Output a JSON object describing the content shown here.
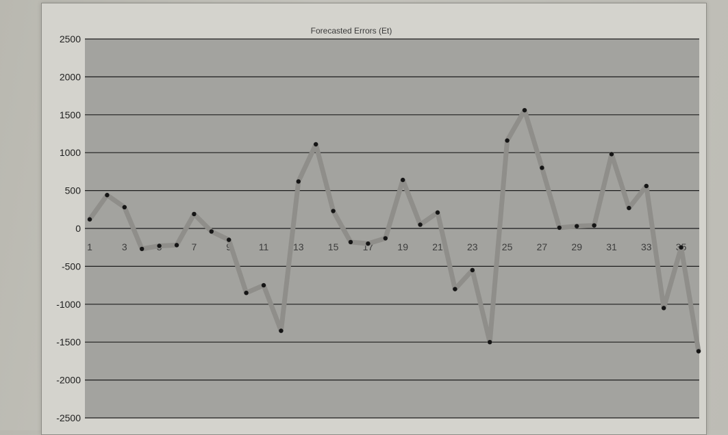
{
  "chart_data": {
    "type": "line",
    "title": "Forecasted Errors (Et)",
    "xlabel": "",
    "ylabel": "",
    "ylim": [
      -2500,
      2500
    ],
    "yticks": [
      2500,
      2000,
      1500,
      1000,
      500,
      0,
      -500,
      -1000,
      -1500,
      -2000,
      -2500
    ],
    "xticks": [
      1,
      3,
      5,
      7,
      9,
      11,
      13,
      15,
      17,
      19,
      21,
      23,
      25,
      27,
      29,
      31,
      33,
      35
    ],
    "grid": true,
    "legend": "none",
    "x": [
      1,
      2,
      3,
      4,
      5,
      6,
      7,
      8,
      9,
      10,
      11,
      12,
      13,
      14,
      15,
      16,
      17,
      18,
      19,
      20,
      21,
      22,
      23,
      24,
      25,
      26,
      27,
      28,
      29,
      30,
      31,
      32,
      33,
      34,
      35,
      36
    ],
    "series": [
      {
        "values": [
          120,
          440,
          280,
          -270,
          -230,
          -220,
          190,
          -40,
          -150,
          -850,
          -750,
          -1350,
          620,
          1110,
          230,
          -180,
          -200,
          -130,
          640,
          50,
          210,
          -800,
          -550,
          -1500,
          1160,
          1560,
          800,
          10,
          30,
          40,
          980,
          270,
          560,
          -1050,
          -250,
          -1620
        ]
      }
    ],
    "colors": {
      "plot_background": "#a3a39f",
      "gridline": "#1c1c1c",
      "line": "#8f8e8a",
      "marker": "#151515"
    }
  }
}
